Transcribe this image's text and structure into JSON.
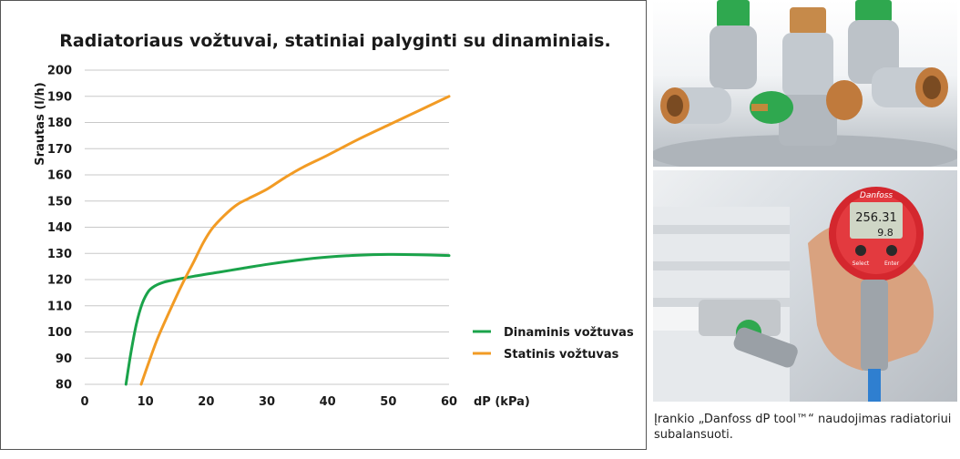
{
  "chart_data": {
    "type": "line",
    "title": "Radiatoriaus vožtuvai, statiniai palyginti su dinaminiais.",
    "xlabel": "dP (kPa)",
    "ylabel": "Srautas (l/h)",
    "xlim": [
      0,
      60
    ],
    "ylim": [
      80,
      200
    ],
    "xticks": [
      "0",
      "10",
      "20",
      "30",
      "40",
      "50",
      "60"
    ],
    "yticks": [
      "80",
      "90",
      "100",
      "110",
      "120",
      "130",
      "140",
      "150",
      "160",
      "170",
      "180",
      "190",
      "200"
    ],
    "grid": "horizontal",
    "legend_position": "bottom-right",
    "series": [
      {
        "name": "Dinaminis vožtuvas",
        "color": "#1aa34a",
        "x": [
          6.8,
          7.6,
          8.5,
          9.5,
          10.5,
          11.5,
          13,
          15,
          18,
          22,
          26,
          30,
          35,
          40,
          45,
          50,
          55,
          60
        ],
        "y": [
          80,
          92,
          103,
          111,
          115.5,
          117.5,
          119,
          120,
          121.3,
          122.8,
          124.3,
          125.8,
          127.4,
          128.6,
          129.3,
          129.6,
          129.5,
          129.2
        ]
      },
      {
        "name": "Statinis vožtuvas",
        "color": "#f29b24",
        "x": [
          9.3,
          10.5,
          12,
          14,
          16,
          18,
          19.5,
          21,
          23,
          25,
          27,
          30,
          33,
          36,
          40,
          45,
          50,
          55,
          60
        ],
        "y": [
          80,
          88,
          97.5,
          108,
          118,
          127,
          134,
          139.5,
          144.5,
          148.5,
          151,
          154.5,
          159,
          163,
          167.5,
          173.5,
          179,
          184.5,
          190
        ]
      }
    ]
  },
  "photos": {
    "valves_alt": "Radiatoriaus vožtuvai",
    "tool_display_value_1": "256.31",
    "tool_display_value_2": "9.8",
    "tool_brand": "Danfoss",
    "tool_button_select": "Select",
    "tool_button_enter": "Enter"
  },
  "caption": "Įrankio „Danfoss dP tool™“ naudojimas radiatoriui subalansuoti."
}
